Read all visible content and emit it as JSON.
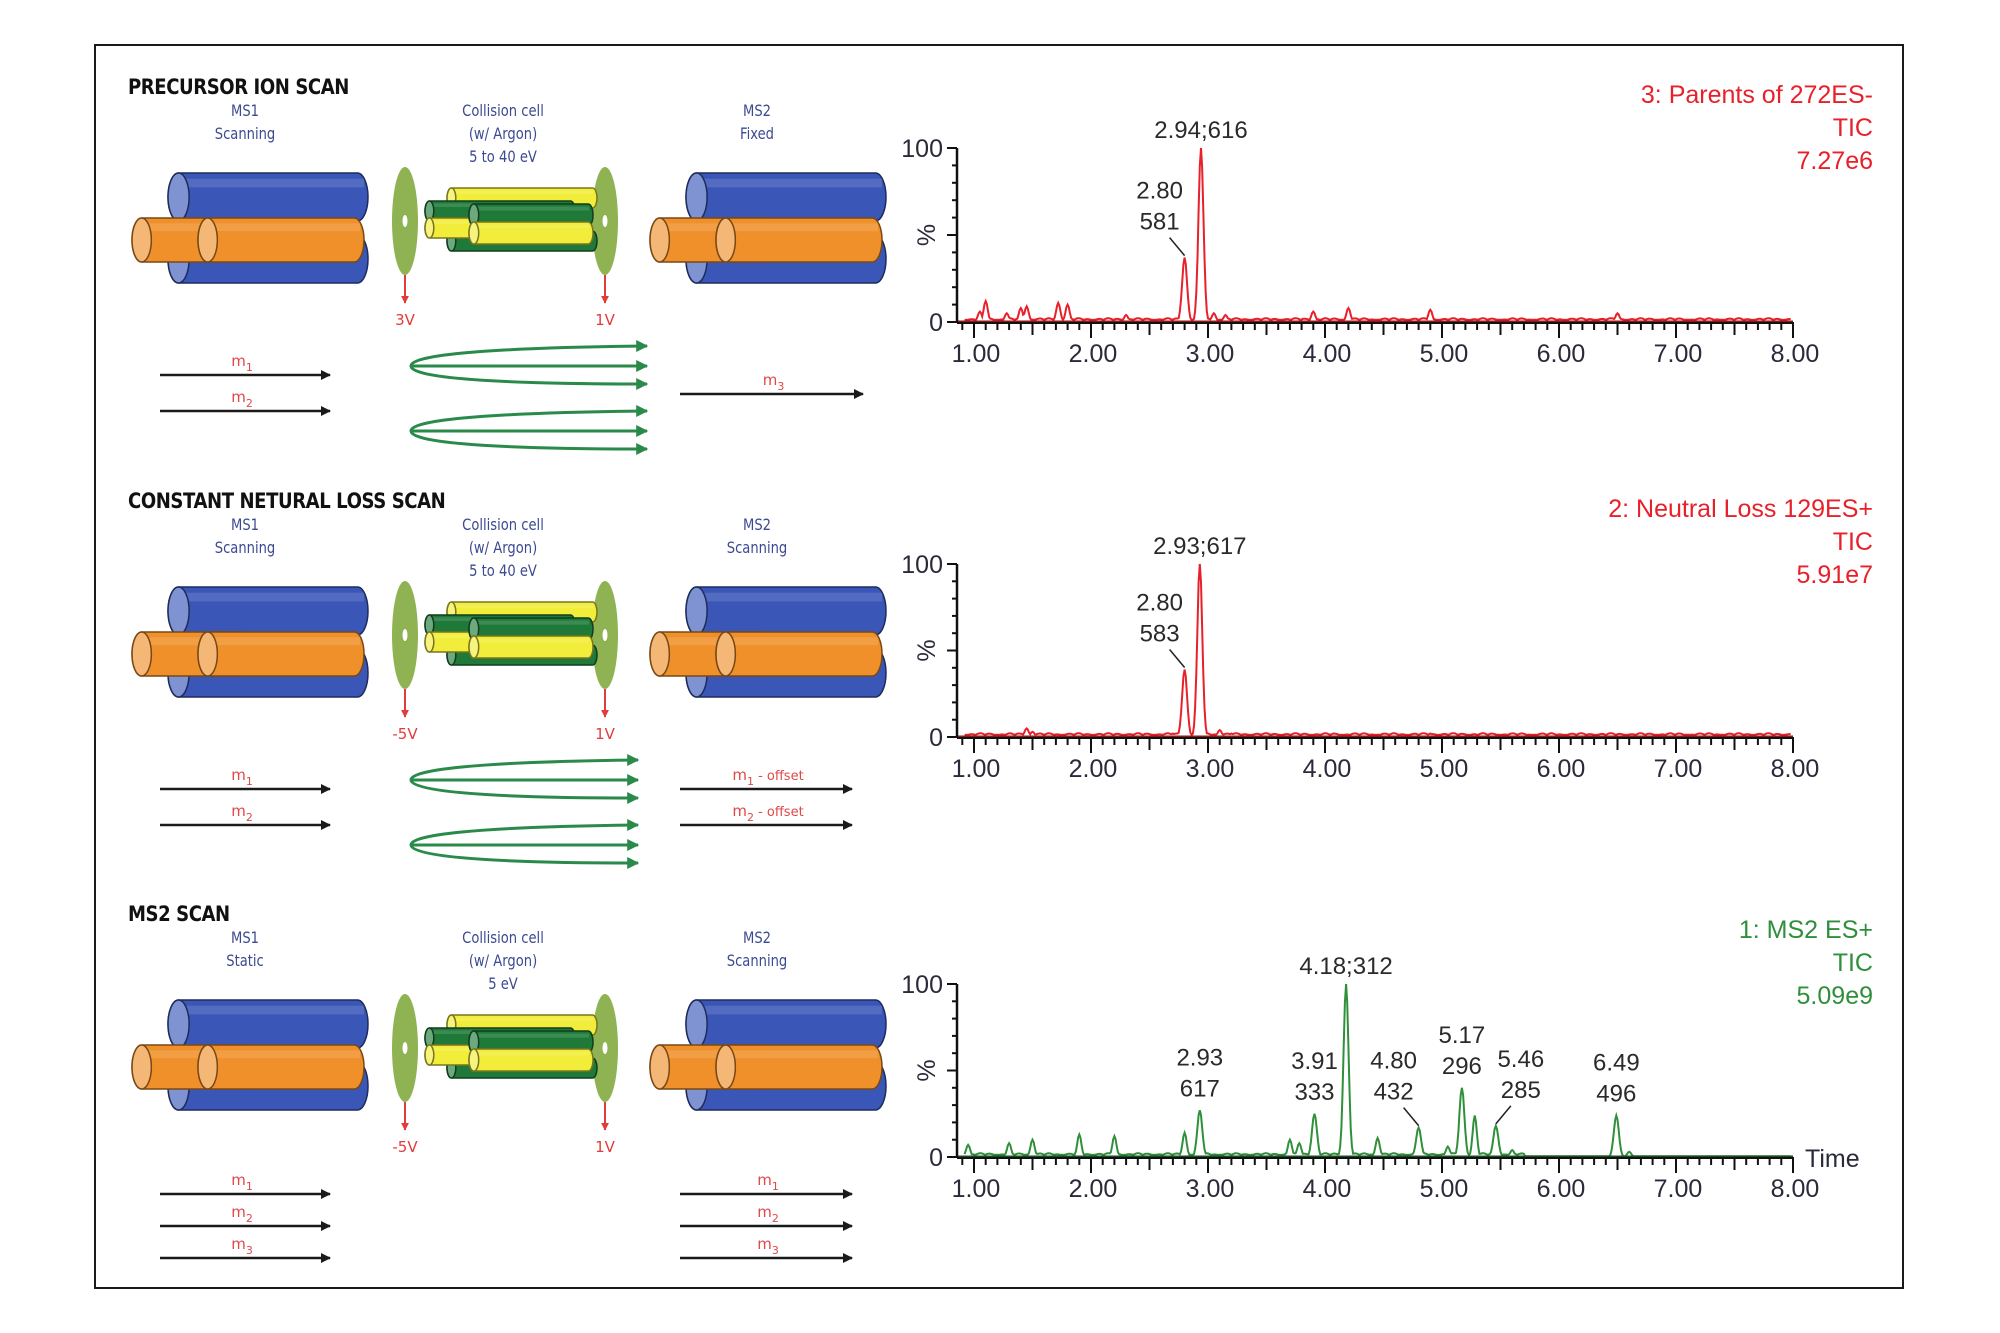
{
  "figure": {
    "sections": [
      {
        "title": "PRECURSOR ION SCAN",
        "ms1": {
          "name": "MS1",
          "mode": "Scanning"
        },
        "cell": {
          "name": "Collision cell",
          "gas": "(w/ Argon)",
          "energy": "5 to 40 eV"
        },
        "ms2": {
          "name": "MS2",
          "mode": "Fixed"
        },
        "voltages": {
          "entrance": "3V",
          "exit": "1V"
        },
        "ms1_ions": [
          "m1",
          "m2"
        ],
        "ms2_ions": [
          "m3"
        ],
        "fragment_fans": 2
      },
      {
        "title": "CONSTANT NETURAL LOSS SCAN",
        "ms1": {
          "name": "MS1",
          "mode": "Scanning"
        },
        "cell": {
          "name": "Collision cell",
          "gas": "(w/ Argon)",
          "energy": "5 to 40 eV"
        },
        "ms2": {
          "name": "MS2",
          "mode": "Scanning"
        },
        "voltages": {
          "entrance": "-5V",
          "exit": "1V"
        },
        "ms1_ions": [
          "m1",
          "m2"
        ],
        "ms2_ions": [
          "m1 - offset",
          "m2 - offset"
        ],
        "fragment_fans": 2
      },
      {
        "title": "MS2 SCAN",
        "ms1": {
          "name": "MS1",
          "mode": "Static"
        },
        "cell": {
          "name": "Collision cell",
          "gas": "(w/ Argon)",
          "energy": "5 eV"
        },
        "ms2": {
          "name": "MS2",
          "mode": "Scanning"
        },
        "voltages": {
          "entrance": "-5V",
          "exit": "1V"
        },
        "ms1_ions": [
          "m1",
          "m2",
          "m3"
        ],
        "ms2_ions": [
          "m1",
          "m2",
          "m3"
        ],
        "fragment_fans": 0
      }
    ],
    "colors": {
      "quad_blue": "#3a57b8",
      "quad_orange": "#f0902a",
      "cell_yellow": "#f2ec3a",
      "cell_green": "#1f7a3a",
      "lens_green": "#8fb352",
      "voltage_red": "#e23b3b",
      "label_blue": "#3b4a92",
      "fragment_green": "#2a8a4a",
      "trace_red": "#e8202a",
      "trace_green": "#2f8f3a"
    }
  },
  "chart_data": [
    {
      "type": "line",
      "title": "3: Parents of 272ES-",
      "subtitle": "TIC",
      "intensity": "7.27e6",
      "color": "#e8202a",
      "xlabel": "",
      "ylabel": "%",
      "xlim": [
        0.9,
        8.0
      ],
      "ylim": [
        0,
        100
      ],
      "xticks": [
        "1.00",
        "2.00",
        "3.00",
        "4.00",
        "5.00",
        "6.00",
        "7.00",
        "8.00"
      ],
      "yticks": [
        "0",
        "100"
      ],
      "peaks": [
        {
          "x": 2.8,
          "y": 37,
          "label": [
            "2.80",
            "581"
          ],
          "leader": true
        },
        {
          "x": 2.94,
          "y": 100,
          "label": [
            "2.94;616"
          ],
          "leader": false
        }
      ],
      "noise": [
        [
          1.05,
          6
        ],
        [
          1.1,
          12
        ],
        [
          1.28,
          5
        ],
        [
          1.4,
          8
        ],
        [
          1.45,
          9
        ],
        [
          1.72,
          11
        ],
        [
          1.8,
          10
        ],
        [
          2.3,
          4
        ],
        [
          3.05,
          5
        ],
        [
          3.15,
          4
        ],
        [
          3.9,
          6
        ],
        [
          4.2,
          8
        ],
        [
          4.9,
          7
        ],
        [
          6.5,
          5
        ]
      ]
    },
    {
      "type": "line",
      "title": "2: Neutral Loss 129ES+",
      "subtitle": "TIC",
      "intensity": "5.91e7",
      "color": "#e8202a",
      "xlabel": "",
      "ylabel": "%",
      "xlim": [
        0.9,
        8.0
      ],
      "ylim": [
        0,
        100
      ],
      "xticks": [
        "1.00",
        "2.00",
        "3.00",
        "4.00",
        "5.00",
        "6.00",
        "7.00",
        "8.00"
      ],
      "yticks": [
        "0",
        "100"
      ],
      "peaks": [
        {
          "x": 2.8,
          "y": 39,
          "label": [
            "2.80",
            "583"
          ],
          "leader": true
        },
        {
          "x": 2.93,
          "y": 100,
          "label": [
            "2.93;617"
          ],
          "leader": false
        }
      ],
      "noise": [
        [
          1.45,
          5
        ],
        [
          1.5,
          3
        ],
        [
          2.7,
          2
        ],
        [
          3.1,
          4
        ],
        [
          3.2,
          2
        ],
        [
          4.0,
          2
        ],
        [
          4.9,
          2
        ],
        [
          6.5,
          1
        ]
      ]
    },
    {
      "type": "line",
      "title": "1: MS2 ES+",
      "subtitle": "TIC",
      "intensity": "5.09e9",
      "color": "#2f8f3a",
      "xlabel": "Time",
      "ylabel": "%",
      "xlim": [
        0.9,
        8.0
      ],
      "ylim": [
        0,
        100
      ],
      "xticks": [
        "1.00",
        "2.00",
        "3.00",
        "4.00",
        "5.00",
        "6.00",
        "7.00",
        "8.00"
      ],
      "yticks": [
        "0",
        "100"
      ],
      "peaks": [
        {
          "x": 2.93,
          "y": 27,
          "label": [
            "2.93",
            "617"
          ],
          "leader": false
        },
        {
          "x": 3.91,
          "y": 25,
          "label": [
            "3.91",
            "333"
          ],
          "leader": false
        },
        {
          "x": 4.18,
          "y": 100,
          "label": [
            "4.18;312"
          ],
          "leader": false
        },
        {
          "x": 4.8,
          "y": 17,
          "label": [
            "4.80",
            "432"
          ],
          "leader": true
        },
        {
          "x": 5.17,
          "y": 40,
          "label": [
            "5.17",
            "296"
          ],
          "leader": false
        },
        {
          "x": 5.46,
          "y": 18,
          "label": [
            "5.46",
            "285"
          ],
          "leader": true
        },
        {
          "x": 6.49,
          "y": 24,
          "label": [
            "6.49",
            "496"
          ],
          "leader": false
        }
      ],
      "noise": [
        [
          0.95,
          7
        ],
        [
          1.3,
          8
        ],
        [
          1.5,
          10
        ],
        [
          1.9,
          13
        ],
        [
          2.2,
          12
        ],
        [
          2.8,
          14
        ],
        [
          3.7,
          10
        ],
        [
          3.78,
          8
        ],
        [
          4.45,
          11
        ],
        [
          5.05,
          6
        ],
        [
          5.28,
          24
        ],
        [
          5.6,
          4
        ],
        [
          6.6,
          3
        ]
      ]
    }
  ]
}
